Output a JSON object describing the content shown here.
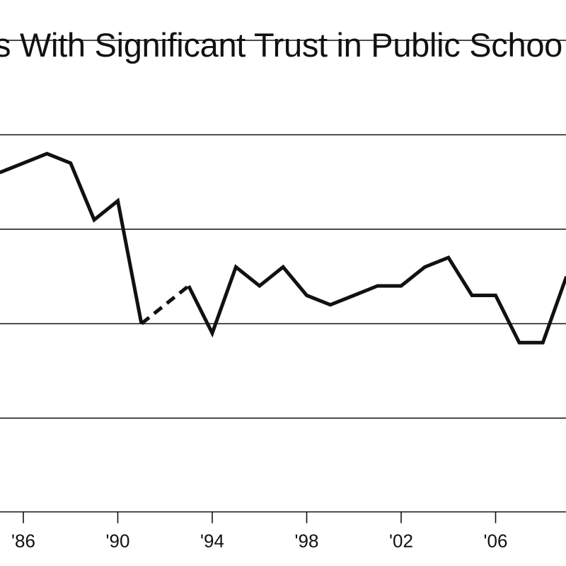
{
  "chart_data": {
    "type": "line",
    "title": "s With Significant Trust in Public Schoo",
    "xlabel": "",
    "ylabel": "",
    "x_tick_labels": [
      "'86",
      "'90",
      "'94",
      "'98",
      "'02",
      "'06"
    ],
    "x_ticks": [
      1986,
      1990,
      1994,
      1998,
      2002,
      2006
    ],
    "xlim": [
      1985,
      2009
    ],
    "ylim": [
      30,
      60
    ],
    "gridlines": [
      35,
      40,
      45,
      50,
      55
    ],
    "grid": true,
    "legend": "none",
    "colors": {
      "line": "#111111",
      "grid": "#111111",
      "text": "#111111"
    },
    "series": [
      {
        "style": "solid",
        "x": [
          1985,
          1986,
          1987,
          1988,
          1989,
          1990,
          1991
        ],
        "y": [
          48,
          48.5,
          49,
          48.5,
          45.5,
          46.5,
          40
        ]
      },
      {
        "style": "dashed",
        "x": [
          1991,
          1993
        ],
        "y": [
          40,
          42
        ]
      },
      {
        "style": "solid",
        "x": [
          1993,
          1994,
          1995,
          1996,
          1997,
          1998,
          1999,
          2000,
          2001,
          2002,
          2003,
          2004,
          2005,
          2006,
          2007,
          2008,
          2009
        ],
        "y": [
          42,
          39.5,
          43,
          42,
          43,
          41.5,
          41,
          41.5,
          42,
          42,
          43,
          43.5,
          41.5,
          41.5,
          39,
          39,
          42.5
        ]
      }
    ]
  }
}
